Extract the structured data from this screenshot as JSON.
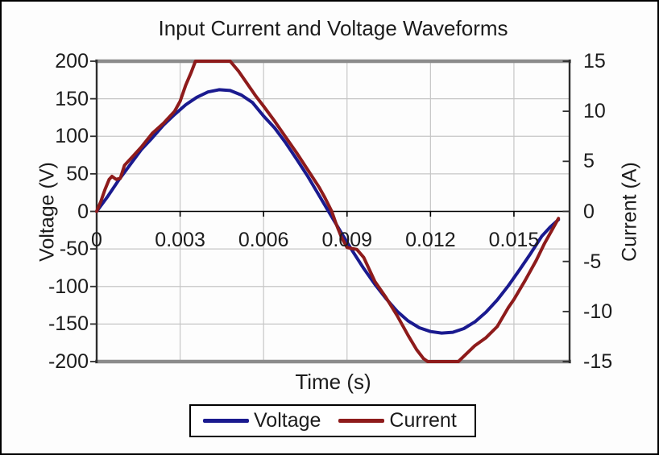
{
  "frame": {
    "border_color": "#000000",
    "background": "#fdfdfd"
  },
  "styles": {
    "grid_color": "#c6c6c6",
    "axis_color": "#2e2e2e",
    "outer_gridline_gray": "#8c8c8c",
    "zero_line_color": "#000000",
    "text_color": "#1c1c1c",
    "legend_border_color": "#000000"
  },
  "chart_data": {
    "type": "line",
    "title": "Input Current and Voltage Waveforms",
    "xlabel": "Time (s)",
    "ylabel_left": "Voltage (V)",
    "ylabel_right": "Current (A)",
    "xlim": [
      0,
      0.017
    ],
    "ylim_left": [
      -200,
      200
    ],
    "ylim_right": [
      -15,
      15
    ],
    "x_ticks": [
      0,
      0.003,
      0.006,
      0.009,
      0.012,
      0.015
    ],
    "x_tick_labels": [
      "0",
      "0.003",
      "0.006",
      "0.009",
      "0.012",
      "0.015"
    ],
    "y_ticks_left": [
      200,
      150,
      100,
      50,
      0,
      -50,
      -100,
      -150,
      -200
    ],
    "y_tick_labels_left": [
      "200",
      "150",
      "100",
      "50",
      "0",
      "-50",
      "-100",
      "-150",
      "-200"
    ],
    "y_ticks_right": [
      15,
      10,
      5,
      0,
      -5,
      -10,
      -15
    ],
    "y_tick_labels_right": [
      "15",
      "10",
      "5",
      "0",
      "-5",
      "-10",
      "-15"
    ],
    "grid": true,
    "legend_position": "bottom",
    "series": [
      {
        "name": "Voltage",
        "axis": "left",
        "color": "#1a1a8f",
        "points": [
          [
            0,
            0
          ],
          [
            0.0004,
            20
          ],
          [
            0.0008,
            42
          ],
          [
            0.0012,
            62
          ],
          [
            0.0016,
            82
          ],
          [
            0.002,
            98
          ],
          [
            0.0024,
            115
          ],
          [
            0.0028,
            129
          ],
          [
            0.0032,
            142
          ],
          [
            0.0036,
            152
          ],
          [
            0.004,
            159
          ],
          [
            0.0044,
            162
          ],
          [
            0.0048,
            161
          ],
          [
            0.0052,
            155
          ],
          [
            0.0056,
            145
          ],
          [
            0.006,
            127
          ],
          [
            0.0064,
            111
          ],
          [
            0.0068,
            91
          ],
          [
            0.0072,
            69
          ],
          [
            0.0076,
            46
          ],
          [
            0.008,
            21
          ],
          [
            0.0084,
            -4
          ],
          [
            0.0088,
            -29
          ],
          [
            0.0092,
            -53
          ],
          [
            0.0096,
            -76
          ],
          [
            0.01,
            -97
          ],
          [
            0.0104,
            -116
          ],
          [
            0.0108,
            -133
          ],
          [
            0.0112,
            -146
          ],
          [
            0.0116,
            -155
          ],
          [
            0.012,
            -160
          ],
          [
            0.0124,
            -162
          ],
          [
            0.0128,
            -161
          ],
          [
            0.0132,
            -156
          ],
          [
            0.0136,
            -147
          ],
          [
            0.014,
            -134
          ],
          [
            0.0144,
            -118
          ],
          [
            0.0148,
            -99
          ],
          [
            0.0152,
            -78
          ],
          [
            0.0156,
            -56
          ],
          [
            0.016,
            -33
          ],
          [
            0.0163,
            -21
          ],
          [
            0.0166,
            -11
          ]
        ]
      },
      {
        "name": "Current",
        "axis": "right",
        "color": "#8e1b1b",
        "points": [
          [
            0,
            0
          ],
          [
            0.00015,
            1.0
          ],
          [
            0.0003,
            2.2
          ],
          [
            0.00045,
            3.2
          ],
          [
            0.00055,
            3.5
          ],
          [
            0.0007,
            3.2
          ],
          [
            0.00085,
            3.3
          ],
          [
            0.001,
            4.6
          ],
          [
            0.0013,
            5.5
          ],
          [
            0.0016,
            6.4
          ],
          [
            0.002,
            7.8
          ],
          [
            0.0024,
            8.8
          ],
          [
            0.0028,
            10.0
          ],
          [
            0.003,
            11.0
          ],
          [
            0.0032,
            12.6
          ],
          [
            0.0034,
            13.9
          ],
          [
            0.00355,
            15
          ],
          [
            0.0048,
            15
          ],
          [
            0.0051,
            14.0
          ],
          [
            0.0054,
            12.8
          ],
          [
            0.0057,
            11.6
          ],
          [
            0.006,
            10.5
          ],
          [
            0.0064,
            9.0
          ],
          [
            0.0068,
            7.4
          ],
          [
            0.0072,
            5.8
          ],
          [
            0.0076,
            4.1
          ],
          [
            0.008,
            2.4
          ],
          [
            0.0082,
            1.4
          ],
          [
            0.00845,
            0
          ],
          [
            0.0086,
            -1.2
          ],
          [
            0.0088,
            -2.6
          ],
          [
            0.009,
            -3.6
          ],
          [
            0.00915,
            -3.7
          ],
          [
            0.00935,
            -3.8
          ],
          [
            0.0096,
            -4.6
          ],
          [
            0.01,
            -7.0
          ],
          [
            0.0104,
            -8.6
          ],
          [
            0.0108,
            -10.4
          ],
          [
            0.0112,
            -12.4
          ],
          [
            0.0115,
            -13.8
          ],
          [
            0.01175,
            -14.7
          ],
          [
            0.0119,
            -15
          ],
          [
            0.013,
            -15
          ],
          [
            0.0133,
            -14.2
          ],
          [
            0.0136,
            -13.4
          ],
          [
            0.014,
            -12.6
          ],
          [
            0.0144,
            -11.5
          ],
          [
            0.0148,
            -9.6
          ],
          [
            0.015,
            -8.8
          ],
          [
            0.0154,
            -6.9
          ],
          [
            0.0158,
            -4.9
          ],
          [
            0.0161,
            -3.2
          ],
          [
            0.0164,
            -1.7
          ],
          [
            0.0166,
            -0.7
          ]
        ]
      }
    ]
  }
}
